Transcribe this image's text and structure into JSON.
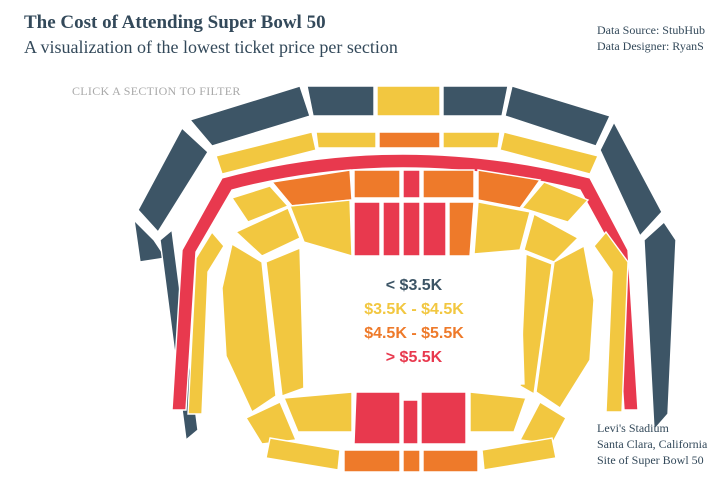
{
  "header": {
    "title": "The Cost of Attending Super Bowl 50",
    "subtitle": "A visualization of the lowest ticket price per section",
    "data_source": "Data Source: StubHub",
    "designer": "Data Designer: RyanS"
  },
  "hint": "CLICK A SECTION TO FILTER",
  "legend": [
    {
      "label": "< $3.5K",
      "color": "#3d5566"
    },
    {
      "label": "$3.5K - $4.5K",
      "color": "#f2c740"
    },
    {
      "label": "$4.5K - $5.5K",
      "color": "#ee7a2a"
    },
    {
      "label": "> $5.5K",
      "color": "#e8394e"
    }
  ],
  "venue": {
    "line1": "Levi's Stadium",
    "line2": "Santa Clara, California",
    "line3": "Site of Super Bowl 50"
  },
  "colors": {
    "navy": "#3d5566",
    "yellow": "#f2c740",
    "orange": "#ee7a2a",
    "red": "#e8394e",
    "text": "#33495a"
  }
}
